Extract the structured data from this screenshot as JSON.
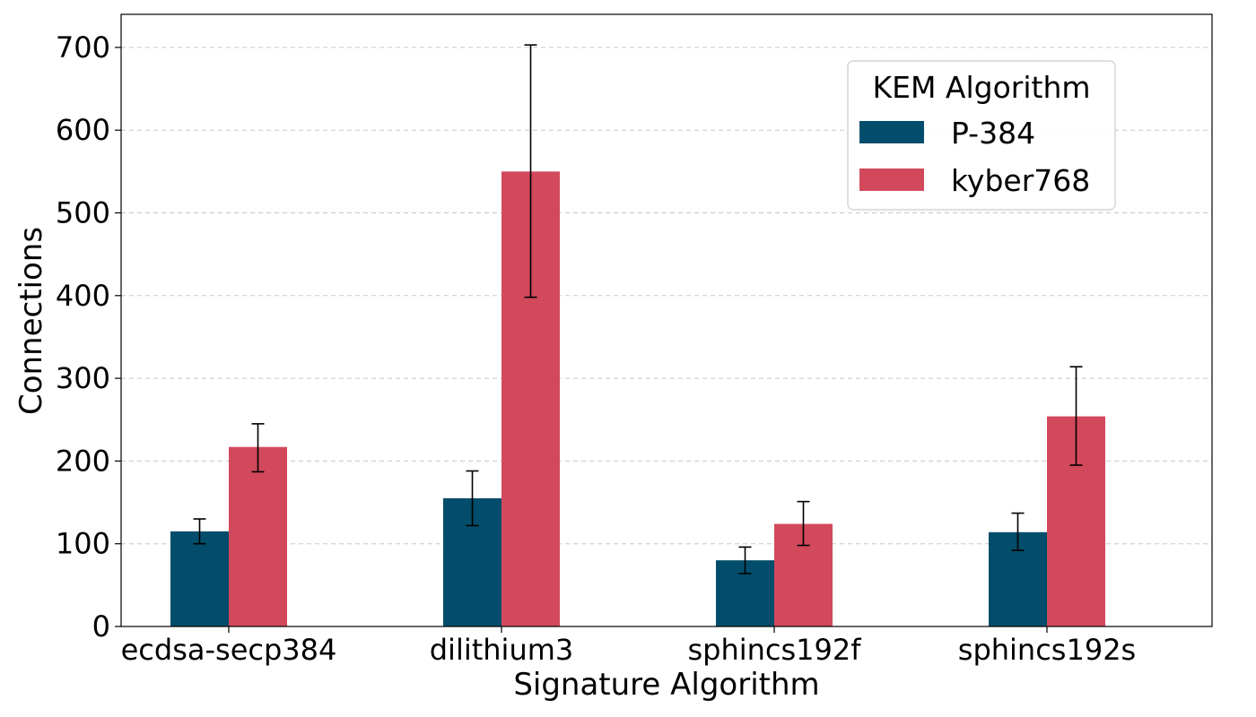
{
  "chart_data": {
    "type": "bar",
    "xlabel": "Signature Algorithm",
    "ylabel": "Connections",
    "ylim": [
      0,
      740
    ],
    "yticks": [
      0,
      100,
      200,
      300,
      400,
      500,
      600,
      700
    ],
    "grid": "horizontal-dashed",
    "legend_title": "KEM Algorithm",
    "legend_position": "top-right",
    "categories": [
      "ecdsa-secp384",
      "dilithium3",
      "sphincs192f",
      "sphincs192s"
    ],
    "series": [
      {
        "name": "P-384",
        "color": "#024d6b",
        "values": [
          115,
          155,
          80,
          114
        ],
        "err_low": [
          100,
          122,
          64,
          92
        ],
        "err_high": [
          130,
          188,
          96,
          137
        ]
      },
      {
        "name": "kyber768",
        "color": "#d2495c",
        "values": [
          217,
          550,
          124,
          254
        ],
        "err_low": [
          187,
          398,
          98,
          195
        ],
        "err_high": [
          245,
          703,
          151,
          314
        ]
      }
    ]
  }
}
